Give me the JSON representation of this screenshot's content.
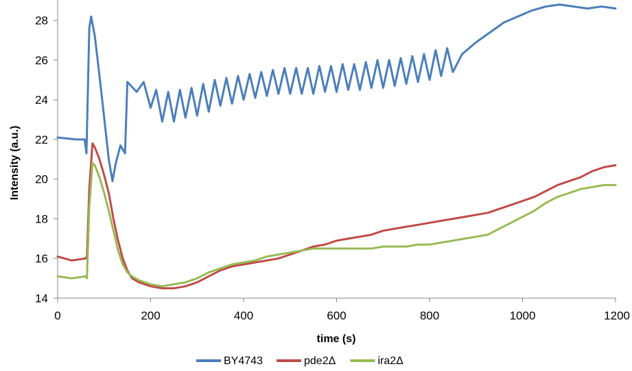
{
  "chart_data": {
    "type": "line",
    "title": "",
    "xlabel": "time (s)",
    "ylabel": "Intensity (a.u.)",
    "xlim": [
      0,
      1200
    ],
    "ylim": [
      14,
      29
    ],
    "xticks": [
      "0",
      "200",
      "400",
      "600",
      "800",
      "1000",
      "1200"
    ],
    "xtick_values": [
      0,
      200,
      400,
      600,
      800,
      1000,
      1200
    ],
    "yticks": [
      "14",
      "16",
      "18",
      "20",
      "22",
      "24",
      "26",
      "28"
    ],
    "ytick_values": [
      14,
      16,
      18,
      20,
      22,
      24,
      26,
      28
    ],
    "grid": false,
    "legend_position": "bottom",
    "series": [
      {
        "name": "BY4743",
        "color": "#4a7ebb",
        "x": [
          0,
          40,
          58,
          62,
          68,
          72,
          80,
          90,
          100,
          110,
          118,
          125,
          135,
          145,
          150,
          158,
          170,
          185,
          200,
          212,
          225,
          238,
          250,
          263,
          275,
          288,
          300,
          313,
          325,
          338,
          350,
          363,
          375,
          388,
          400,
          413,
          425,
          438,
          450,
          463,
          475,
          488,
          500,
          513,
          525,
          538,
          550,
          563,
          575,
          588,
          600,
          613,
          625,
          638,
          650,
          663,
          675,
          688,
          700,
          713,
          725,
          738,
          750,
          763,
          775,
          788,
          800,
          813,
          825,
          838,
          850,
          870,
          900,
          930,
          960,
          990,
          1020,
          1050,
          1080,
          1110,
          1140,
          1170,
          1200
        ],
        "y": [
          22.1,
          22.0,
          22.0,
          21.3,
          27.6,
          28.2,
          27.2,
          25.2,
          23.1,
          21.0,
          19.9,
          20.8,
          21.7,
          21.3,
          24.9,
          24.7,
          24.4,
          24.9,
          23.6,
          24.5,
          22.9,
          24.4,
          22.9,
          24.5,
          23.1,
          24.6,
          23.2,
          24.8,
          23.4,
          25.0,
          23.7,
          25.1,
          23.8,
          25.2,
          24.0,
          25.3,
          24.1,
          25.4,
          24.2,
          25.5,
          24.3,
          25.6,
          24.3,
          25.6,
          24.3,
          25.6,
          24.3,
          25.7,
          24.4,
          25.7,
          24.4,
          25.8,
          24.5,
          25.8,
          24.5,
          25.9,
          24.6,
          26.0,
          24.6,
          26.0,
          24.7,
          26.1,
          24.8,
          26.2,
          24.9,
          26.3,
          25.0,
          26.5,
          25.2,
          26.6,
          25.4,
          26.3,
          26.9,
          27.4,
          27.9,
          28.2,
          28.5,
          28.7,
          28.8,
          28.7,
          28.6,
          28.7,
          28.6
        ]
      },
      {
        "name": "pde2Δ",
        "color": "#be4b48",
        "x": [
          0,
          30,
          60,
          63,
          68,
          75,
          80,
          90,
          100,
          110,
          120,
          130,
          140,
          150,
          160,
          175,
          200,
          225,
          250,
          275,
          300,
          325,
          350,
          375,
          400,
          425,
          450,
          475,
          500,
          525,
          550,
          575,
          600,
          625,
          650,
          675,
          700,
          725,
          750,
          775,
          800,
          825,
          850,
          875,
          900,
          925,
          950,
          975,
          1000,
          1025,
          1050,
          1075,
          1100,
          1125,
          1150,
          1175,
          1200
        ],
        "y": [
          16.1,
          15.9,
          16.0,
          16.1,
          19.5,
          21.8,
          21.6,
          21.0,
          20.2,
          19.3,
          18.0,
          16.9,
          16.0,
          15.4,
          15.0,
          14.8,
          14.6,
          14.5,
          14.5,
          14.6,
          14.8,
          15.1,
          15.4,
          15.6,
          15.7,
          15.8,
          15.9,
          16.0,
          16.2,
          16.4,
          16.6,
          16.7,
          16.9,
          17.0,
          17.1,
          17.2,
          17.4,
          17.5,
          17.6,
          17.7,
          17.8,
          17.9,
          18.0,
          18.1,
          18.2,
          18.3,
          18.5,
          18.7,
          18.9,
          19.1,
          19.4,
          19.7,
          19.9,
          20.1,
          20.4,
          20.6,
          20.7
        ]
      },
      {
        "name": "ira2Δ",
        "color": "#98b954",
        "x": [
          0,
          30,
          60,
          63,
          68,
          75,
          80,
          90,
          100,
          110,
          120,
          130,
          140,
          150,
          160,
          175,
          200,
          225,
          250,
          275,
          300,
          325,
          350,
          375,
          400,
          425,
          450,
          475,
          500,
          525,
          550,
          575,
          600,
          625,
          650,
          675,
          700,
          725,
          750,
          775,
          800,
          825,
          850,
          875,
          900,
          925,
          950,
          975,
          1000,
          1025,
          1050,
          1075,
          1100,
          1125,
          1150,
          1175,
          1200
        ],
        "y": [
          15.1,
          15.0,
          15.1,
          15.0,
          18.6,
          20.8,
          20.7,
          20.1,
          19.3,
          18.4,
          17.4,
          16.4,
          15.7,
          15.3,
          15.1,
          14.9,
          14.7,
          14.6,
          14.7,
          14.8,
          15.0,
          15.3,
          15.5,
          15.7,
          15.8,
          15.9,
          16.1,
          16.2,
          16.3,
          16.4,
          16.5,
          16.5,
          16.5,
          16.5,
          16.5,
          16.5,
          16.6,
          16.6,
          16.6,
          16.7,
          16.7,
          16.8,
          16.9,
          17.0,
          17.1,
          17.2,
          17.5,
          17.8,
          18.1,
          18.4,
          18.8,
          19.1,
          19.3,
          19.5,
          19.6,
          19.7,
          19.7
        ]
      }
    ]
  }
}
